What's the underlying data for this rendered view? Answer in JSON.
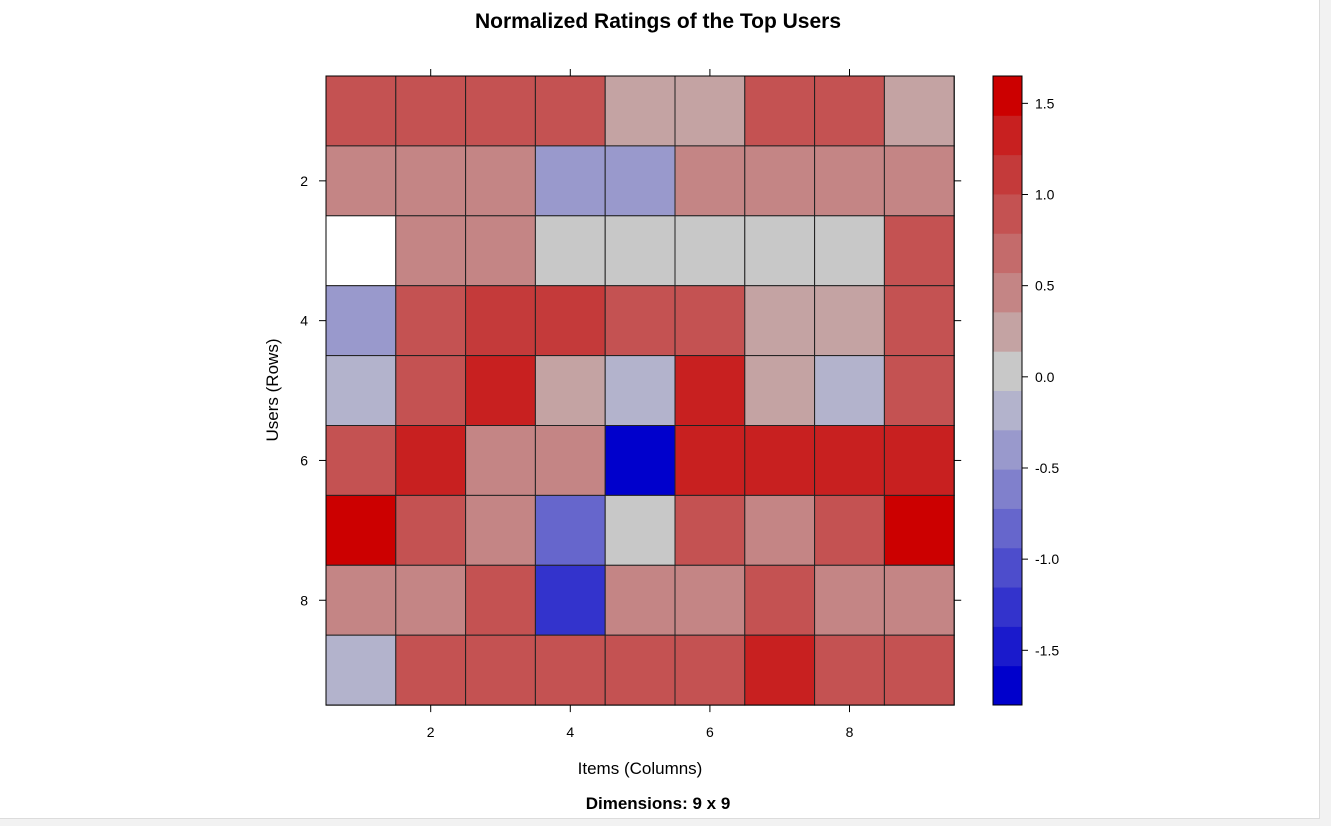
{
  "chart_data": {
    "type": "heatmap",
    "title": "Normalized Ratings of the Top Users",
    "subtitle": "Dimensions: 9 x 9",
    "xlabel": "Items (Columns)",
    "ylabel": "Users (Rows)",
    "x_ticks": [
      2,
      4,
      6,
      8
    ],
    "y_ticks": [
      2,
      4,
      6,
      8
    ],
    "rows": 9,
    "cols": 9,
    "values": [
      [
        1.0,
        1.0,
        1.0,
        1.0,
        0.3,
        0.3,
        1.0,
        1.0,
        0.3
      ],
      [
        0.5,
        0.5,
        0.5,
        -0.5,
        -0.5,
        0.5,
        0.5,
        0.5,
        0.5
      ],
      [
        null,
        0.5,
        0.5,
        0.0,
        0.0,
        0.0,
        0.0,
        0.0,
        1.0
      ],
      [
        -0.5,
        0.8,
        1.2,
        1.2,
        0.8,
        0.8,
        0.3,
        0.3,
        0.8
      ],
      [
        -0.2,
        1.0,
        1.4,
        0.3,
        -0.2,
        1.4,
        0.3,
        -0.2,
        1.0
      ],
      [
        1.0,
        1.4,
        0.5,
        0.5,
        -1.8,
        1.4,
        1.4,
        1.4,
        1.4
      ],
      [
        1.6,
        1.0,
        0.5,
        -0.8,
        0.0,
        1.0,
        0.5,
        1.0,
        1.6
      ],
      [
        0.5,
        0.5,
        1.0,
        -1.2,
        0.5,
        0.5,
        1.0,
        0.5,
        0.5
      ],
      [
        -0.2,
        1.0,
        1.0,
        1.0,
        1.0,
        1.0,
        1.4,
        1.0,
        1.0
      ]
    ],
    "missing_color": "#ffffff",
    "colorbar": {
      "min": -1.8,
      "max": 1.65,
      "ticks": [
        1.5,
        1.0,
        0.5,
        0.0,
        -0.5,
        -1.0,
        -1.5
      ],
      "tick_labels": [
        "1.5",
        "1.0",
        "0.5",
        "0.0",
        "-0.5",
        "-1.0",
        "-1.5"
      ],
      "colors": [
        "#0000cc",
        "#1a1acc",
        "#3333cc",
        "#4d4dcc",
        "#6666cc",
        "#8080cc",
        "#9999cc",
        "#b3b3cc",
        "#c8c8c8",
        "#c4a3a3",
        "#c48585",
        "#c46b6b",
        "#c45252",
        "#c43a3a",
        "#c82020",
        "#cc0000"
      ]
    }
  }
}
